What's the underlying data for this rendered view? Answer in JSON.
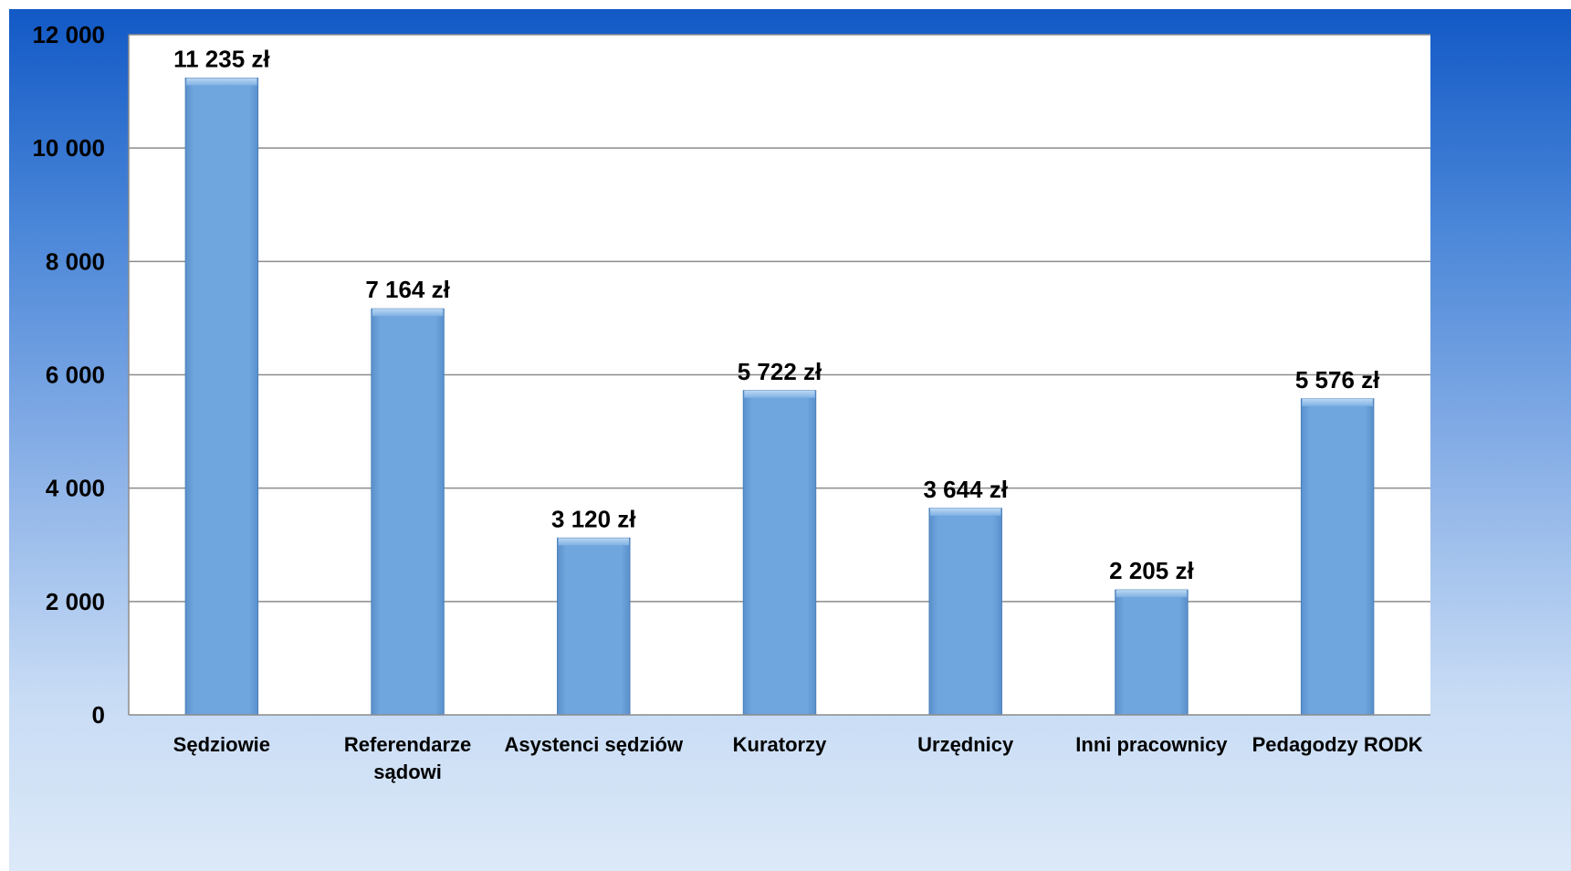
{
  "chart_data": {
    "type": "bar",
    "categories": [
      [
        "Sędziowie"
      ],
      [
        "Referendarze",
        "sądowi"
      ],
      [
        "Asystenci sędziów"
      ],
      [
        "Kuratorzy"
      ],
      [
        "Urzędnicy"
      ],
      [
        "Inni pracownicy"
      ],
      [
        "Pedagodzy RODK"
      ]
    ],
    "values": [
      11235,
      7164,
      3120,
      5722,
      3644,
      2205,
      5576
    ],
    "data_labels": [
      "11 235 zł",
      "7 164 zł",
      "3 120 zł",
      "5 722 zł",
      "3 644 zł",
      "2 205 zł",
      "5 576 zł"
    ],
    "y_ticks": [
      0,
      2000,
      4000,
      6000,
      8000,
      10000,
      12000
    ],
    "y_tick_labels": [
      "0",
      "2 000",
      "4 000",
      "6 000",
      "8 000",
      "10 000",
      "12 000"
    ],
    "ylim": [
      0,
      12000
    ],
    "grid": true,
    "legend": "none",
    "title": "",
    "xlabel": "",
    "ylabel": "",
    "colors": {
      "bar": "#6fa6dd",
      "bar_edge": "#4a7fb8",
      "plot_bg": "#ffffff",
      "grid": "#8c8c8c"
    }
  }
}
